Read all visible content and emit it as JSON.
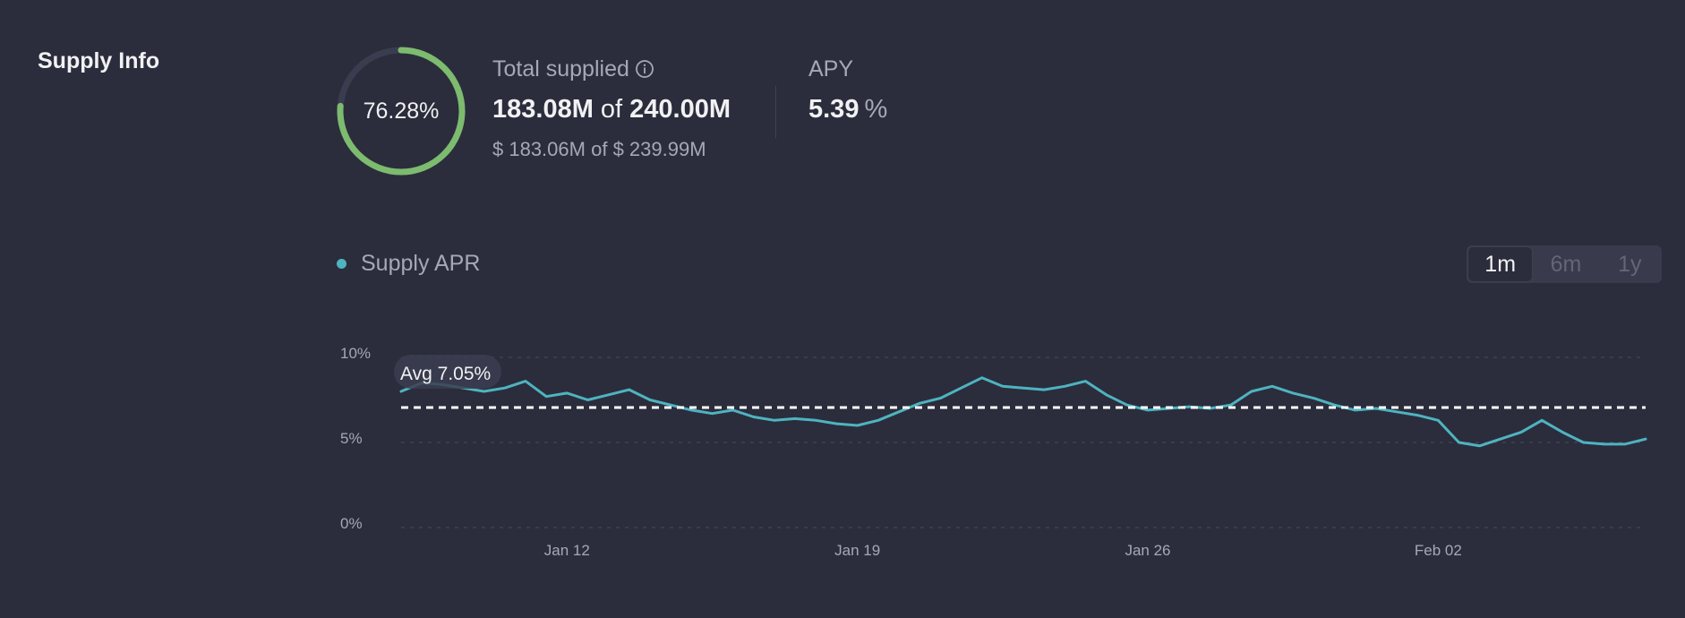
{
  "section": {
    "title": "Supply Info"
  },
  "ring": {
    "percent_label": "76.28%",
    "fraction": 0.7628,
    "color": "#7dbb6f",
    "track_color": "#3a3d4f"
  },
  "total_supplied": {
    "label": "Total supplied",
    "amount": "183.08M",
    "of": "of",
    "cap": "240.00M",
    "usd_amount": "$ 183.06M",
    "usd_of": "of",
    "usd_cap": "$ 239.99M",
    "info_icon": "info-circle-icon"
  },
  "apy": {
    "label": "APY",
    "value": "5.39",
    "unit": "%"
  },
  "legend": {
    "label": "Supply APR",
    "color": "#4fb3c0"
  },
  "tabs": [
    {
      "label": "1m",
      "active": true
    },
    {
      "label": "6m",
      "active": false
    },
    {
      "label": "1y",
      "active": false
    }
  ],
  "chart_data": {
    "type": "line",
    "title": "",
    "xlabel": "",
    "ylabel": "",
    "ylim": [
      0,
      10
    ],
    "y_ticks": [
      "0%",
      "5%",
      "10%"
    ],
    "x_ticks": [
      "Jan 12",
      "Jan 19",
      "Jan 26",
      "Feb 02"
    ],
    "x_range": [
      "Jan 08",
      "Feb 07"
    ],
    "grid": true,
    "average": {
      "label": "Avg 7.05%",
      "value": 7.05
    },
    "series": [
      {
        "color": "#4fb3c0",
        "x": [
          "Jan 08",
          "Jan 08",
          "Jan 09",
          "Jan 09",
          "Jan 10",
          "Jan 10",
          "Jan 11",
          "Jan 11",
          "Jan 12",
          "Jan 12",
          "Jan 13",
          "Jan 13",
          "Jan 14",
          "Jan 14",
          "Jan 15",
          "Jan 15",
          "Jan 16",
          "Jan 16",
          "Jan 17",
          "Jan 17",
          "Jan 18",
          "Jan 18",
          "Jan 19",
          "Jan 19",
          "Jan 20",
          "Jan 20",
          "Jan 21",
          "Jan 21",
          "Jan 22",
          "Jan 22",
          "Jan 23",
          "Jan 23",
          "Jan 24",
          "Jan 24",
          "Jan 25",
          "Jan 25",
          "Jan 26",
          "Jan 26",
          "Jan 27",
          "Jan 27",
          "Jan 28",
          "Jan 28",
          "Jan 29",
          "Jan 29",
          "Jan 30",
          "Jan 30",
          "Jan 31",
          "Jan 31",
          "Feb 01",
          "Feb 01",
          "Feb 02",
          "Feb 02",
          "Feb 03",
          "Feb 03",
          "Feb 04",
          "Feb 04",
          "Feb 05",
          "Feb 05",
          "Feb 06",
          "Feb 06",
          "Feb 07"
        ],
        "values": [
          8.0,
          8.5,
          8.4,
          8.2,
          8.0,
          8.2,
          8.6,
          7.7,
          7.9,
          7.5,
          7.8,
          8.1,
          7.5,
          7.2,
          6.9,
          6.7,
          6.9,
          6.5,
          6.3,
          6.4,
          6.3,
          6.1,
          6.0,
          6.3,
          6.8,
          7.3,
          7.6,
          8.2,
          8.8,
          8.3,
          8.2,
          8.1,
          8.3,
          8.6,
          7.8,
          7.2,
          6.9,
          7.0,
          7.1,
          7.0,
          7.2,
          8.0,
          8.3,
          7.9,
          7.6,
          7.2,
          6.9,
          7.0,
          6.8,
          6.6,
          6.3,
          5.0,
          4.8,
          5.2,
          5.6,
          6.3,
          5.6,
          5.0,
          4.9,
          4.9,
          5.2
        ]
      }
    ]
  }
}
